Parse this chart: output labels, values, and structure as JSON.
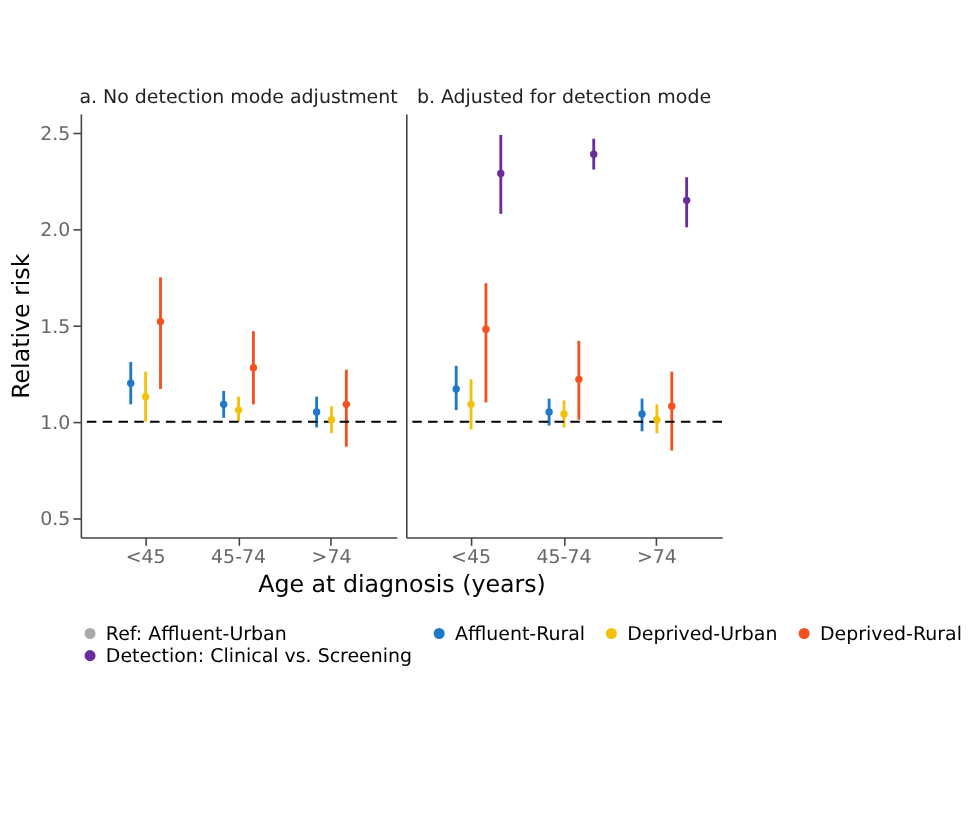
{
  "chart_data": [
    {
      "type": "scatter",
      "title": "a. No detection mode adjustment",
      "ylabel": "Relative risk",
      "xlabel": "Age at diagnosis (years)",
      "categories": [
        "<45",
        "45-74",
        ">74"
      ],
      "ylim": [
        0.4,
        2.6
      ],
      "yticks": [
        0.5,
        {
          "value": 1,
          "label": "1.0"
        },
        1.5,
        {
          "value": 2,
          "label": "2.0"
        },
        2.5
      ],
      "grid": false,
      "marker": "circle",
      "legend": "bottom",
      "ref_lines": [
        {
          "axis": "y",
          "value": 1.0,
          "color": "#000000",
          "line_style": "dashed"
        }
      ],
      "series": [
        {
          "name": "Ref: Affluent-Urban",
          "color": "#aaaaaa",
          "values": [
            null,
            null,
            null
          ]
        },
        {
          "name": "Affluent-Rural",
          "color": "#1f78c8",
          "values": [
            1.2,
            1.09,
            1.05
          ],
          "errors": [
            [
              1.09,
              1.31
            ],
            [
              1.02,
              1.16
            ],
            [
              0.97,
              1.13
            ]
          ]
        },
        {
          "name": "Deprived-Urban",
          "color": "#f2c10d",
          "values": [
            1.13,
            1.06,
            1.01
          ],
          "errors": [
            [
              1.0,
              1.26
            ],
            [
              1.0,
              1.13
            ],
            [
              0.94,
              1.08
            ]
          ]
        },
        {
          "name": "Deprived-Rural",
          "color": "#f4511e",
          "values": [
            1.52,
            1.28,
            1.09
          ],
          "errors": [
            [
              1.17,
              1.75
            ],
            [
              1.09,
              1.47
            ],
            [
              0.87,
              1.27
            ]
          ]
        }
      ]
    },
    {
      "type": "scatter",
      "title": "b. Adjusted for detection mode",
      "categories": [
        "<45",
        "45-74",
        ">74"
      ],
      "ylim": [
        0.4,
        2.6
      ],
      "yticks": [
        0.5,
        1,
        1.5,
        2,
        2.5
      ],
      "tick_labels": "x",
      "grid": false,
      "marker": "circle",
      "legend": "bottom",
      "ref_lines": [
        {
          "axis": "y",
          "value": 1.0,
          "color": "#000000",
          "line_style": "dashed"
        }
      ],
      "series": [
        {
          "name": "Affluent-Rural",
          "color": "#1f78c8",
          "values": [
            1.17,
            1.05,
            1.04
          ],
          "errors": [
            [
              1.06,
              1.29
            ],
            [
              0.98,
              1.12
            ],
            [
              0.95,
              1.12
            ]
          ]
        },
        {
          "name": "Deprived-Urban",
          "color": "#f2c10d",
          "values": [
            1.09,
            1.04,
            1.01
          ],
          "errors": [
            [
              0.96,
              1.22
            ],
            [
              0.97,
              1.11
            ],
            [
              0.94,
              1.09
            ]
          ]
        },
        {
          "name": "Deprived-Rural",
          "color": "#f4511e",
          "values": [
            1.48,
            1.22,
            1.08
          ],
          "errors": [
            [
              1.1,
              1.72
            ],
            [
              1.01,
              1.42
            ],
            [
              0.85,
              1.26
            ]
          ]
        },
        {
          "name": "Detection: Clinical vs. Screening",
          "color": "#6a2c9c",
          "values": [
            2.29,
            2.39,
            2.15
          ],
          "errors": [
            [
              2.08,
              2.49
            ],
            [
              2.31,
              2.47
            ],
            [
              2.01,
              2.27
            ]
          ]
        }
      ]
    }
  ]
}
